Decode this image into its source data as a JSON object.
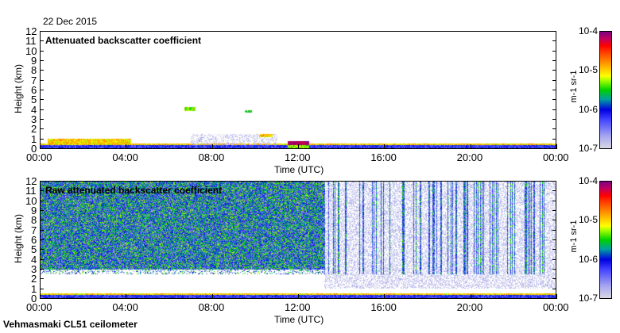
{
  "header": {
    "date": "22 Dec 2015",
    "footer": "Vehmasmaki CL51 ceilometer"
  },
  "chart_data": [
    {
      "type": "heatmap",
      "title": "Attenuated backscatter coefficient",
      "xlabel": "Time (UTC)",
      "ylabel": "Height (km)",
      "xticks": [
        "00:00",
        "04:00",
        "08:00",
        "12:00",
        "16:00",
        "20:00",
        "00:00"
      ],
      "xlim": [
        0,
        24
      ],
      "yticks": [
        "0",
        "1",
        "2",
        "3",
        "4",
        "5",
        "6",
        "7",
        "8",
        "9",
        "10",
        "11",
        "12"
      ],
      "ylim": [
        0,
        12
      ],
      "colorbar": {
        "label": "m-1 sr-1",
        "ticks": [
          "10-7",
          "10-6",
          "10-5",
          "10-4"
        ],
        "scale": "log",
        "range": [
          1e-07,
          0.0001
        ]
      },
      "features": [
        {
          "t0": 0,
          "t1": 24,
          "h0": 0,
          "h1": 0.5,
          "log10": -6.2
        },
        {
          "t0": 0.3,
          "t1": 4.2,
          "h0": 0.5,
          "h1": 1.0,
          "log10": -5.0
        },
        {
          "t0": 6.7,
          "t1": 7.2,
          "h0": 3.9,
          "h1": 4.3,
          "log10": -5.3
        },
        {
          "t0": 9.5,
          "t1": 9.85,
          "h0": 3.7,
          "h1": 3.95,
          "log10": -5.5
        },
        {
          "t0": 7.0,
          "t1": 11.0,
          "h0": 0.4,
          "h1": 1.5,
          "log10": -6.9
        },
        {
          "t0": 10.2,
          "t1": 10.8,
          "h0": 1.2,
          "h1": 1.5,
          "log10": -5.0
        },
        {
          "t0": 11.5,
          "t1": 12.5,
          "h0": 0,
          "h1": 0.8,
          "log10": -5.3
        }
      ]
    },
    {
      "type": "heatmap",
      "title": "Raw attenuated backscatter coefficient",
      "xlabel": "Time (UTC)",
      "ylabel": "Height (km)",
      "xticks": [
        "00:00",
        "04:00",
        "08:00",
        "12:00",
        "16:00",
        "20:00",
        "00:00"
      ],
      "xlim": [
        0,
        24
      ],
      "yticks": [
        "0",
        "1",
        "2",
        "3",
        "4",
        "5",
        "6",
        "7",
        "8",
        "9",
        "10",
        "11",
        "12"
      ],
      "ylim": [
        0,
        12
      ],
      "colorbar": {
        "label": "m-1 sr-1",
        "ticks": [
          "10-7",
          "10-6",
          "10-5",
          "10-4"
        ],
        "scale": "log",
        "range": [
          1e-07,
          0.0001
        ]
      },
      "features": [
        {
          "t0": 0,
          "t1": 13.2,
          "h0": 2.5,
          "h1": 12,
          "log10": -5.9
        },
        {
          "t0": 13.2,
          "t1": 24,
          "h0": 1,
          "h1": 12,
          "log10": -7.0
        },
        {
          "t0": 0,
          "t1": 24,
          "h0": 0,
          "h1": 0.5,
          "log10": -6.2
        }
      ]
    }
  ]
}
